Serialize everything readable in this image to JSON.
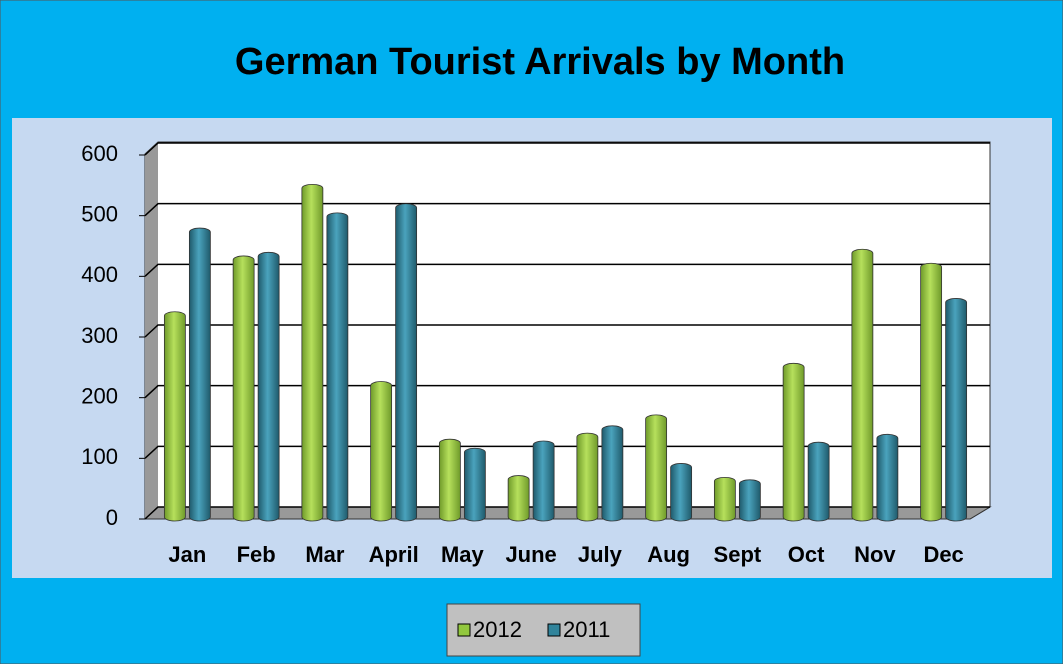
{
  "chart_data": {
    "type": "bar",
    "title": "German Tourist Arrivals by Month",
    "categories": [
      "Jan",
      "Feb",
      "Mar",
      "April",
      "May",
      "June",
      "July",
      "Aug",
      "Sept",
      "Oct",
      "Nov",
      "Dec"
    ],
    "series": [
      {
        "name": "2012",
        "color": "#92c83e",
        "values": [
          335,
          427,
          545,
          220,
          125,
          65,
          135,
          165,
          62,
          250,
          438,
          415
        ]
      },
      {
        "name": "2011",
        "color": "#31849b",
        "values": [
          473,
          433,
          498,
          513,
          110,
          122,
          147,
          85,
          58,
          120,
          133,
          357
        ]
      }
    ],
    "ylim": [
      0,
      600
    ],
    "yticks": [
      0,
      100,
      200,
      300,
      400,
      500,
      600
    ],
    "grid": true,
    "legend": "bottom"
  }
}
